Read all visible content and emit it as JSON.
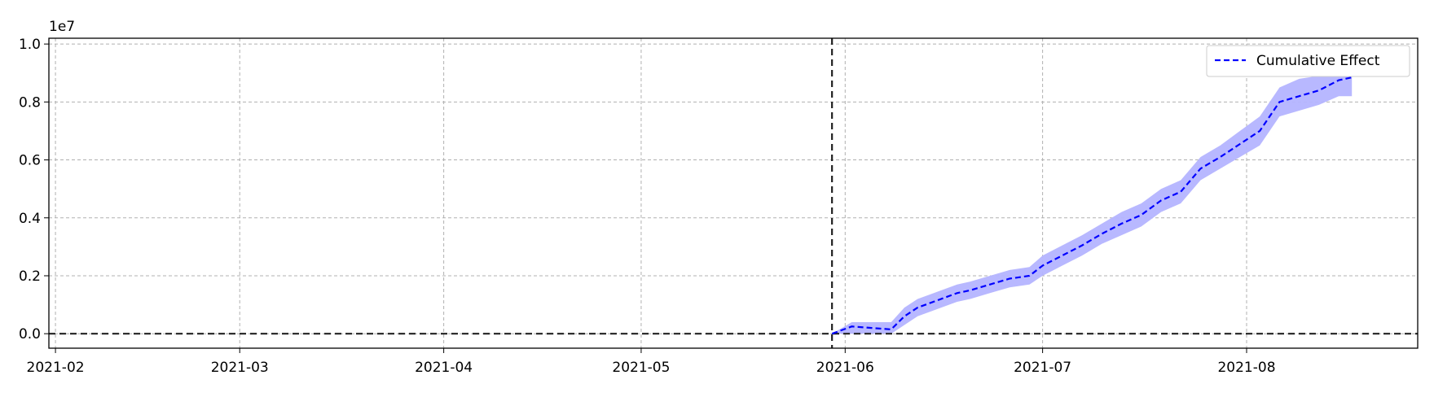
{
  "chart_data": {
    "type": "line",
    "title": "",
    "xlabel": "",
    "ylabel": "",
    "y_multiplier_label": "1e7",
    "y_scale": 10000000,
    "xlim": [
      "2021-01-31",
      "2021-08-27"
    ],
    "ylim": [
      -0.05,
      1.02
    ],
    "x_ticks": [
      "2021-02-01",
      "2021-03-01",
      "2021-04-01",
      "2021-05-01",
      "2021-06-01",
      "2021-07-01",
      "2021-08-01"
    ],
    "x_tick_labels": [
      "2021-02",
      "2021-03",
      "2021-04",
      "2021-05",
      "2021-06",
      "2021-07",
      "2021-08"
    ],
    "y_ticks": [
      0.0,
      0.2,
      0.4,
      0.6,
      0.8,
      1.0
    ],
    "y_tick_labels": [
      "0.0",
      "0.2",
      "0.4",
      "0.6",
      "0.8",
      "1.0"
    ],
    "grid": true,
    "legend_position": "top-right",
    "intervention_date": "2021-05-30",
    "zero_line": 0,
    "series": [
      {
        "name": "Cumulative Effect",
        "style": "dashed",
        "color": "#0000ff",
        "band_color": "#b4b4ff",
        "x": [
          "2021-05-30",
          "2021-06-02",
          "2021-06-05",
          "2021-06-08",
          "2021-06-10",
          "2021-06-12",
          "2021-06-15",
          "2021-06-18",
          "2021-06-20",
          "2021-06-23",
          "2021-06-26",
          "2021-06-29",
          "2021-07-01",
          "2021-07-04",
          "2021-07-07",
          "2021-07-10",
          "2021-07-13",
          "2021-07-16",
          "2021-07-19",
          "2021-07-22",
          "2021-07-25",
          "2021-07-28",
          "2021-07-31",
          "2021-08-03",
          "2021-08-06",
          "2021-08-09",
          "2021-08-12",
          "2021-08-15",
          "2021-08-17"
        ],
        "y": [
          0.0,
          0.025,
          0.02,
          0.015,
          0.06,
          0.09,
          0.115,
          0.14,
          0.15,
          0.17,
          0.19,
          0.2,
          0.235,
          0.27,
          0.305,
          0.345,
          0.38,
          0.41,
          0.46,
          0.49,
          0.57,
          0.61,
          0.655,
          0.7,
          0.8,
          0.82,
          0.84,
          0.875,
          0.885
        ],
        "lower": [
          0.0,
          0.0,
          0.0,
          0.0,
          0.03,
          0.06,
          0.085,
          0.11,
          0.12,
          0.14,
          0.16,
          0.17,
          0.2,
          0.235,
          0.27,
          0.31,
          0.34,
          0.37,
          0.42,
          0.45,
          0.53,
          0.57,
          0.61,
          0.65,
          0.75,
          0.77,
          0.79,
          0.82,
          0.82
        ],
        "upper": [
          0.0,
          0.04,
          0.04,
          0.04,
          0.09,
          0.12,
          0.145,
          0.17,
          0.18,
          0.2,
          0.22,
          0.23,
          0.27,
          0.305,
          0.34,
          0.38,
          0.42,
          0.45,
          0.5,
          0.53,
          0.61,
          0.65,
          0.7,
          0.75,
          0.85,
          0.88,
          0.89,
          0.93,
          0.95
        ]
      }
    ]
  }
}
